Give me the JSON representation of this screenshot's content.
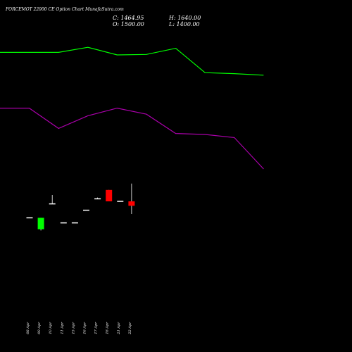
{
  "chart_data": {
    "type": "candlestick",
    "title": "FORCEMOT 22000 CE Option Chart MunafaSutra.com",
    "summary": {
      "close_label": "C: 1464.95",
      "high_label": "H: 1640.00",
      "open_label": "O: 1500.00",
      "low_label": "L: 1400.00"
    },
    "categories": [
      "08 Apr",
      "09 Apr",
      "10 Apr",
      "11 Apr",
      "15 Apr",
      "16 Apr",
      "17 Apr",
      "18 Apr",
      "21 Apr",
      "22 Apr"
    ],
    "candles": [
      {
        "o": 1370,
        "h": 1370,
        "l": 1370,
        "c": 1370
      },
      {
        "o": 1280,
        "h": 1370,
        "l": 1270,
        "c": 1370
      },
      {
        "o": 1480,
        "h": 1550,
        "l": 1480,
        "c": 1480
      },
      {
        "o": 1330,
        "h": 1330,
        "l": 1330,
        "c": 1330
      },
      {
        "o": 1330,
        "h": 1330,
        "l": 1330,
        "c": 1330
      },
      {
        "o": 1430,
        "h": 1430,
        "l": 1430,
        "c": 1430
      },
      {
        "o": 1520,
        "h": 1530,
        "l": 1520,
        "c": 1520
      },
      {
        "o": 1590,
        "h": 1590,
        "l": 1500,
        "c": 1500
      },
      {
        "o": 1500,
        "h": 1500,
        "l": 1500,
        "c": 1500
      },
      {
        "o": 1500,
        "h": 1640,
        "l": 1400,
        "c": 1464.95
      }
    ],
    "overlays": [
      {
        "color": "#00ff00",
        "x": [
          0,
          2,
          3,
          4,
          5,
          6,
          7,
          8,
          9
        ],
        "values": [
          3800,
          3800,
          3900,
          3750,
          3760,
          3880,
          3400,
          3380,
          3350
        ]
      },
      {
        "color": "#aa00aa",
        "x": [
          0,
          1,
          2,
          3,
          4,
          5,
          6,
          7,
          8,
          9
        ],
        "values": [
          2700,
          2700,
          2300,
          2550,
          2700,
          2580,
          2200,
          2180,
          2120,
          1500
        ]
      }
    ],
    "colors": {
      "up": "#00ff00",
      "down": "#ff0000",
      "neutral": "#ffffff",
      "background": "#000000"
    }
  }
}
